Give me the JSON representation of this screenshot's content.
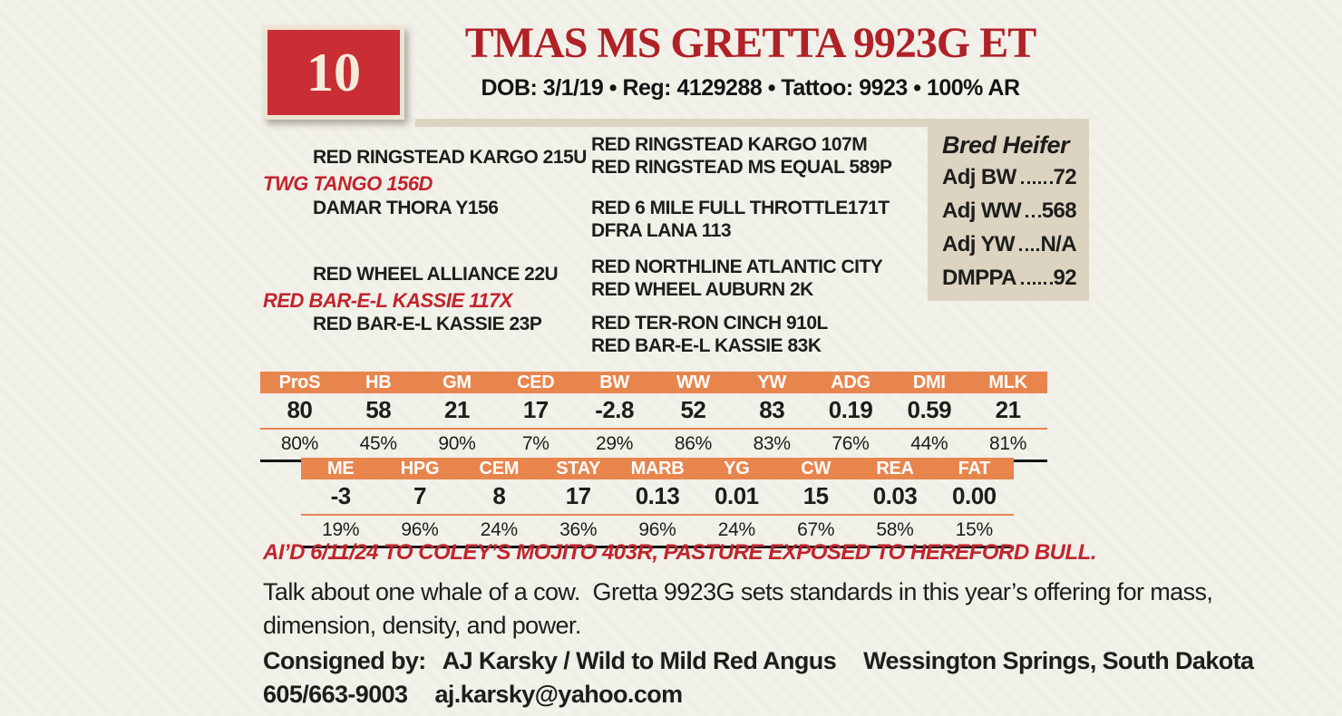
{
  "colors": {
    "page_background": "#f2f1ea",
    "lot_red": "#ca2e35",
    "title_red": "#b02127",
    "accent_red": "#c2242c",
    "table_orange": "#e8854d",
    "tan": "#dcd4c1"
  },
  "header": {
    "lot_number": "10",
    "title": "TMAS MS GRETTA 9923G ET",
    "subtitle": "DOB: 3/1/19  •  Reg: 4129288  •  Tattoo: 9923  •  100% AR"
  },
  "stats_box": {
    "title": "Bred Heifer",
    "rows": [
      {
        "label": "Adj BW",
        "value": "72"
      },
      {
        "label": "Adj WW",
        "value": "568"
      },
      {
        "label": "Adj YW",
        "value": "N/A"
      },
      {
        "label": "DMPPA",
        "value": "92"
      }
    ]
  },
  "pedigree": {
    "sire_line": {
      "grandsire": "RED RINGSTEAD KARGO 215U",
      "sire": "TWG TANGO 156D",
      "granddam": "DAMAR THORA Y156"
    },
    "dam_line": {
      "grandsire": "RED WHEEL ALLIANCE 22U",
      "dam": "RED BAR-E-L KASSIE 117X",
      "granddam": "RED BAR-E-L KASSIE 23P"
    },
    "great_grandparents": [
      "RED RINGSTEAD KARGO 107M",
      "RED RINGSTEAD MS EQUAL 589P",
      "RED 6 MILE FULL THROTTLE171T",
      "DFRA LANA 113",
      "RED NORTHLINE ATLANTIC CITY",
      "RED WHEEL AUBURN 2K",
      "RED TER-RON CINCH 910L",
      "RED BAR-E-L KASSIE 83K"
    ]
  },
  "tables": {
    "epd1": {
      "headers": [
        "ProS",
        "HB",
        "GM",
        "CED",
        "BW",
        "WW",
        "YW",
        "ADG",
        "DMI",
        "MLK"
      ],
      "values": [
        "80",
        "58",
        "21",
        "17",
        "-2.8",
        "52",
        "83",
        "0.19",
        "0.59",
        "21"
      ],
      "percentiles": [
        "80%",
        "45%",
        "90%",
        "7%",
        "29%",
        "86%",
        "83%",
        "76%",
        "44%",
        "81%"
      ]
    },
    "epd2": {
      "headers": [
        "ME",
        "HPG",
        "CEM",
        "STAY",
        "MARB",
        "YG",
        "CW",
        "REA",
        "FAT"
      ],
      "values": [
        "-3",
        "7",
        "8",
        "17",
        "0.13",
        "0.01",
        "15",
        "0.03",
        "0.00"
      ],
      "percentiles": [
        "19%",
        "96%",
        "24%",
        "36%",
        "96%",
        "24%",
        "67%",
        "58%",
        "15%"
      ]
    }
  },
  "notes": {
    "breeding": "AI’D 6/11/24 TO COLEY’S MOJITO 403R, PASTURE EXPOSED TO HEREFORD BULL.",
    "description_lines": [
      "Talk about one whale of a cow.  Gretta 9923G sets standards in this year’s offering for mass,",
      "dimension, density, and power."
    ],
    "consigned_label": "Consigned by:",
    "consignor": "AJ Karsky / Wild to Mild Red Angus",
    "location": "Wessington Springs, South Dakota",
    "phone": "605/663-9003",
    "email": "aj.karsky@yahoo.com"
  }
}
